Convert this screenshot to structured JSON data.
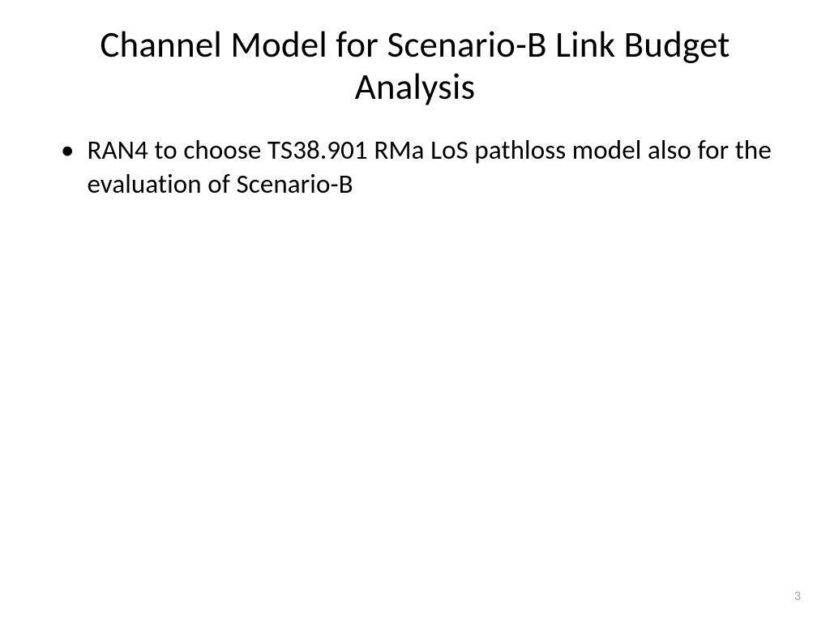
{
  "slide": {
    "title": "Channel Model for Scenario-B Link Budget Analysis",
    "bullets": [
      {
        "text": "RAN4 to choose TS38.901 RMa LoS pathloss model also for the evaluation of Scenario-B"
      }
    ],
    "page_number": "3"
  },
  "styling": {
    "background_color": "#ffffff",
    "title_color": "#000000",
    "title_fontsize": 45,
    "title_fontweight": 400,
    "body_color": "#000000",
    "body_fontsize": 33,
    "page_number_color": "#a0a0a0",
    "page_number_fontsize": 16,
    "font_family": "Calibri"
  }
}
